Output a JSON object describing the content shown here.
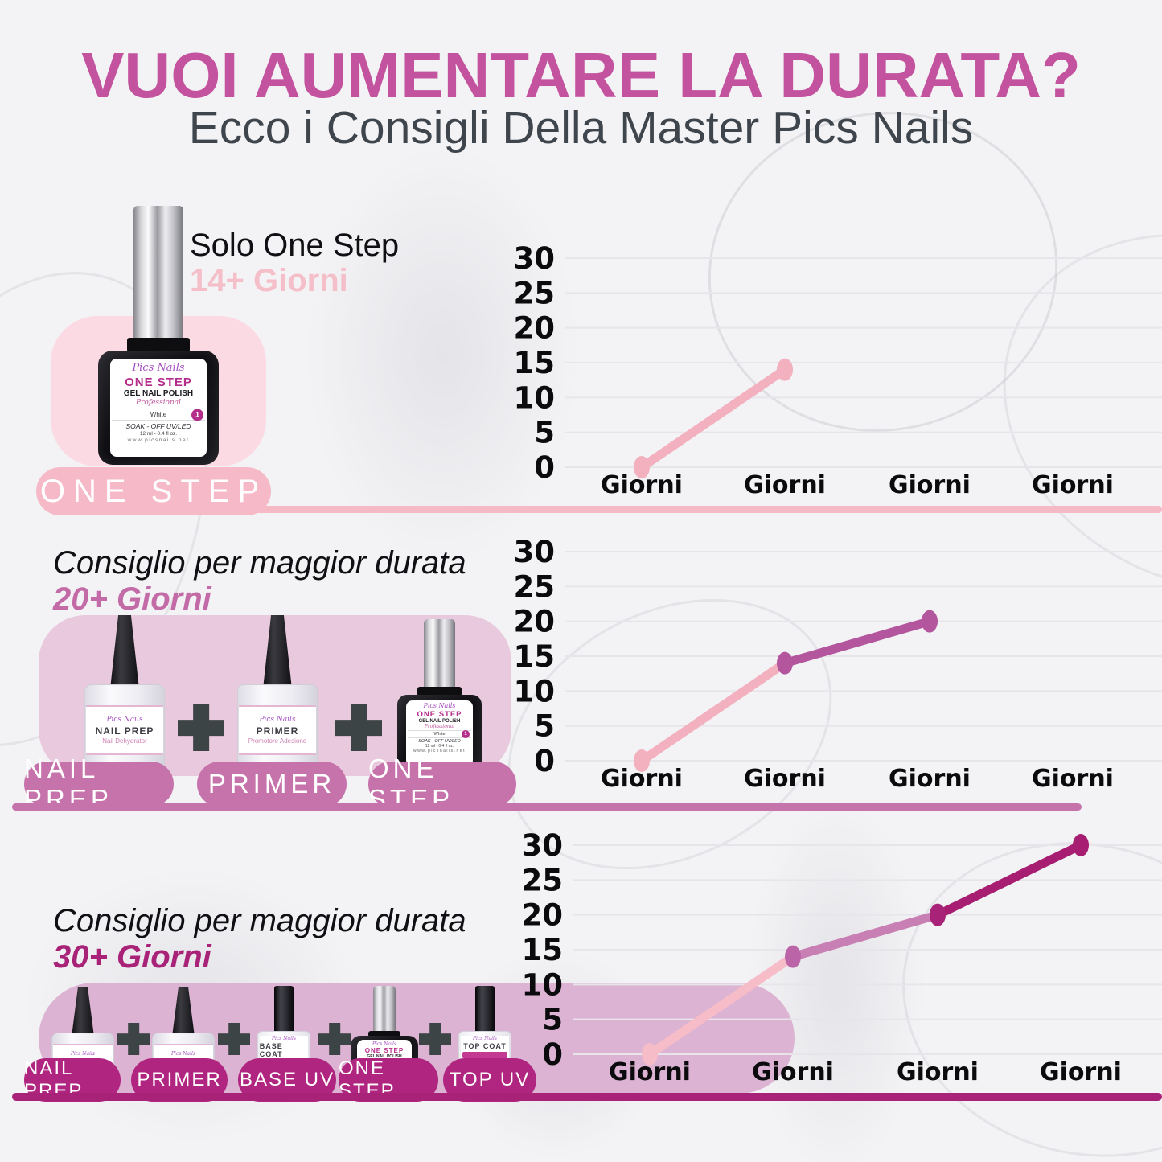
{
  "page": {
    "background": "#f3f3f5"
  },
  "header": {
    "title": "VUOI AUMENTARE LA DURATA?",
    "title_color": "#c4539f",
    "subtitle": "Ecco i Consigli Della Master Pics Nails",
    "subtitle_color": "#3f454c"
  },
  "brand": {
    "name": "Pics Nails"
  },
  "products": {
    "one_step": {
      "name": "ONE STEP",
      "type": "GEL NAIL POLISH",
      "grade": "Professional",
      "shade": "White",
      "badge": "1",
      "cure": "SOAK - OFF UV/LED",
      "size": "12 ml - 0.4 fl oz.",
      "site": "www.picsnails.net"
    },
    "nail_prep": {
      "name": "NAIL PREP",
      "sub": "Nail Dehydrator"
    },
    "primer": {
      "name": "PRIMER",
      "sub": "Promotore Adesione"
    },
    "base_coat": {
      "name": "BASE COAT"
    },
    "top_coat": {
      "name": "TOP COAT"
    }
  },
  "sections": [
    {
      "heading": "Solo One Step",
      "days": "14+ Giorni",
      "days_color": "#f5bfca",
      "panel_color": "#fbdae3",
      "pill_color": "#f6b9c8",
      "divider_color": "#f5bac6",
      "pills": [
        "ONE STEP"
      ]
    },
    {
      "heading": "Consiglio per maggior durata",
      "days": "20+ Giorni",
      "days_color": "#c36ba7",
      "panel_color": "#e9c9dd",
      "pill_color": "#c672ab",
      "divider_color": "#c672ab",
      "pills": [
        "NAIL PREP",
        "PRIMER",
        "ONE STEP"
      ]
    },
    {
      "heading": "Consiglio per maggior durata",
      "days": "30+ Giorni",
      "days_color": "#a82277",
      "panel_color": "#dcb3d3",
      "pill_color": "#b02580",
      "divider_color": "#a82277",
      "pills": [
        "NAIL PREP",
        "PRIMER",
        "BASE UV",
        "ONE STEP",
        "TOP UV"
      ]
    }
  ],
  "icons": {
    "plus": "plus-icon",
    "plus_color": "#3d4446"
  },
  "chart_data": [
    {
      "type": "line",
      "title": "",
      "categories": [
        "Giorni",
        "Giorni",
        "Giorni",
        "Giorni"
      ],
      "values": [
        0,
        14
      ],
      "xlabel": "",
      "ylabel": "",
      "ylim": [
        0,
        30
      ],
      "yticks": [
        0,
        5,
        10,
        15,
        20,
        25,
        30
      ],
      "grid": true,
      "grid_color": "#e8e5ea",
      "legend": "none",
      "segment_colors": [
        "#f3b0bf"
      ],
      "point_colors": [
        "#f3b0bf",
        "#f3b0bf"
      ]
    },
    {
      "type": "line",
      "title": "",
      "categories": [
        "Giorni",
        "Giorni",
        "Giorni",
        "Giorni"
      ],
      "values": [
        0,
        14,
        20
      ],
      "xlabel": "",
      "ylabel": "",
      "ylim": [
        0,
        30
      ],
      "yticks": [
        0,
        5,
        10,
        15,
        20,
        25,
        30
      ],
      "grid": true,
      "grid_color": "#e8e5ea",
      "legend": "none",
      "segment_colors": [
        "#f3b0bf",
        "#b3569e"
      ],
      "point_colors": [
        "#f3b0bf",
        "#b3569e",
        "#b3569e"
      ]
    },
    {
      "type": "line",
      "title": "",
      "categories": [
        "Giorni",
        "Giorni",
        "Giorni",
        "Giorni"
      ],
      "values": [
        0,
        14,
        20,
        30
      ],
      "xlabel": "",
      "ylabel": "",
      "ylim": [
        0,
        30
      ],
      "yticks": [
        0,
        5,
        10,
        15,
        20,
        25,
        30
      ],
      "grid": true,
      "grid_color": "#e8e5ea",
      "legend": "none",
      "segment_colors": [
        "#f6bcc8",
        "#c77fb4",
        "#a61d72"
      ],
      "point_colors": [
        "#f6bcc8",
        "#bb65a8",
        "#a82277",
        "#a61d72"
      ]
    }
  ]
}
